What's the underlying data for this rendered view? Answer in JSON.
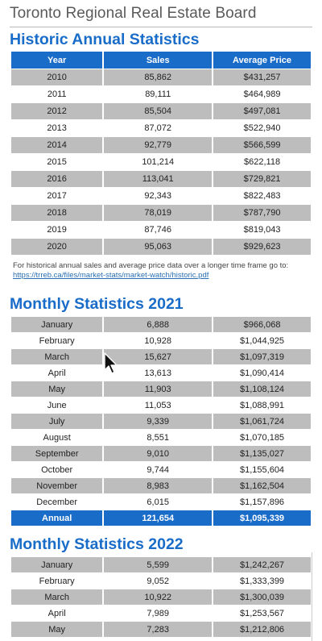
{
  "board_title": "Toronto Regional Real Estate Board",
  "historic": {
    "title": "Historic Annual Statistics",
    "headers": [
      "Year",
      "Sales",
      "Average Price"
    ],
    "rows": [
      [
        "2010",
        "85,862",
        "$431,257"
      ],
      [
        "2011",
        "89,111",
        "$464,989"
      ],
      [
        "2012",
        "85,504",
        "$497,081"
      ],
      [
        "2013",
        "87,072",
        "$522,940"
      ],
      [
        "2014",
        "92,779",
        "$566,599"
      ],
      [
        "2015",
        "101,214",
        "$622,118"
      ],
      [
        "2016",
        "113,041",
        "$729,821"
      ],
      [
        "2017",
        "92,343",
        "$822,483"
      ],
      [
        "2018",
        "78,019",
        "$787,790"
      ],
      [
        "2019",
        "87,746",
        "$819,043"
      ],
      [
        "2020",
        "95,063",
        "$929,623"
      ]
    ],
    "note_text": "For historical annual sales and average price data over a longer time frame go to:",
    "note_link": "https://trreb.ca/files/market-stats/market-watch/historic.pdf"
  },
  "monthly_2021": {
    "title": "Monthly Statistics 2021",
    "rows": [
      [
        "January",
        "6,888",
        "$966,068"
      ],
      [
        "February",
        "10,928",
        "$1,044,925"
      ],
      [
        "March",
        "15,627",
        "$1,097,319"
      ],
      [
        "April",
        "13,613",
        "$1,090,414"
      ],
      [
        "May",
        "11,903",
        "$1,108,124"
      ],
      [
        "June",
        "11,053",
        "$1,088,991"
      ],
      [
        "July",
        "9,339",
        "$1,061,724"
      ],
      [
        "August",
        "8,551",
        "$1,070,185"
      ],
      [
        "September",
        "9,010",
        "$1,135,027"
      ],
      [
        "October",
        "9,744",
        "$1,155,604"
      ],
      [
        "November",
        "8,983",
        "$1,162,504"
      ],
      [
        "December",
        "6,015",
        "$1,157,896"
      ]
    ],
    "annual": [
      "Annual",
      "121,654",
      "$1,095,339"
    ]
  },
  "monthly_2022": {
    "title": "Monthly Statistics 2022",
    "rows": [
      [
        "January",
        "5,599",
        "$1,242,267"
      ],
      [
        "February",
        "9,052",
        "$1,333,399"
      ],
      [
        "March",
        "10,922",
        "$1,300,039"
      ],
      [
        "April",
        "7,989",
        "$1,253,567"
      ],
      [
        "May",
        "7,283",
        "$1,212,806"
      ]
    ]
  },
  "colors": {
    "accent": "#1a6cc9",
    "row_grey": "#bdbdbd"
  }
}
